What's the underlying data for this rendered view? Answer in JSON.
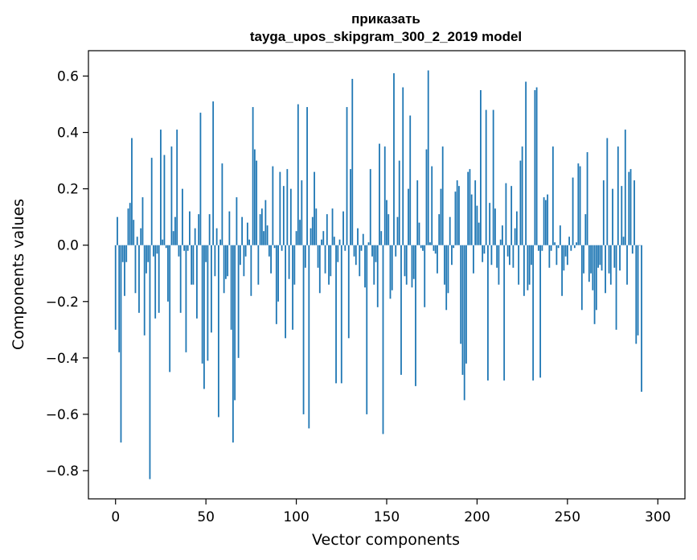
{
  "chart_data": {
    "type": "bar",
    "title_line1": "приказать",
    "title_line2": "tayga_upos_skipgram_300_2_2019 model",
    "xlabel": "Vector components",
    "ylabel": "Components values",
    "xlim": [
      -15,
      315
    ],
    "ylim": [
      -0.9,
      0.69
    ],
    "xticks": [
      0,
      50,
      100,
      150,
      200,
      250,
      300
    ],
    "xtick_labels": [
      "0",
      "50",
      "100",
      "150",
      "200",
      "250",
      "300"
    ],
    "yticks": [
      -0.8,
      -0.6,
      -0.4,
      -0.2,
      0.0,
      0.2,
      0.4,
      0.6
    ],
    "ytick_labels": [
      "−0.8",
      "−0.6",
      "−0.4",
      "−0.2",
      "0.0",
      "0.2",
      "0.4",
      "0.6"
    ],
    "bar_color": "#1f77b4",
    "grid": false,
    "legend": "none",
    "values": [
      -0.3,
      0.1,
      -0.38,
      -0.7,
      -0.06,
      -0.18,
      -0.06,
      0.13,
      0.15,
      0.38,
      0.09,
      -0.17,
      0.03,
      -0.24,
      0.06,
      0.17,
      -0.32,
      -0.1,
      -0.06,
      -0.83,
      0.31,
      -0.04,
      -0.26,
      -0.03,
      -0.24,
      0.41,
      0.02,
      0.32,
      -0.01,
      -0.2,
      -0.45,
      0.35,
      0.05,
      0.1,
      0.41,
      -0.04,
      -0.24,
      0.2,
      -0.02,
      -0.38,
      -0.02,
      0.12,
      -0.14,
      -0.14,
      0.06,
      -0.26,
      0.11,
      0.47,
      -0.42,
      -0.51,
      -0.06,
      -0.41,
      0.11,
      -0.31,
      0.51,
      -0.11,
      0.06,
      -0.61,
      0.02,
      0.29,
      -0.17,
      -0.12,
      -0.11,
      0.12,
      -0.3,
      -0.7,
      -0.55,
      0.17,
      -0.4,
      -0.07,
      0.1,
      -0.11,
      -0.04,
      0.08,
      0.02,
      -0.18,
      0.49,
      0.34,
      0.3,
      -0.14,
      0.11,
      0.13,
      0.05,
      0.16,
      0.07,
      -0.04,
      -0.1,
      0.28,
      -0.01,
      -0.28,
      -0.2,
      0.26,
      -0.02,
      0.21,
      -0.33,
      0.27,
      -0.12,
      0.2,
      -0.3,
      -0.14,
      0.05,
      0.5,
      0.09,
      0.23,
      -0.6,
      -0.08,
      0.49,
      -0.65,
      0.06,
      0.1,
      0.26,
      0.13,
      -0.08,
      -0.17,
      0.02,
      0.05,
      -0.1,
      0.11,
      -0.14,
      -0.11,
      0.13,
      0.03,
      -0.49,
      -0.06,
      0.02,
      -0.49,
      0.12,
      -0.02,
      0.49,
      -0.33,
      0.27,
      0.59,
      -0.04,
      -0.07,
      0.06,
      -0.11,
      -0.02,
      0.04,
      -0.15,
      -0.6,
      0.01,
      0.27,
      -0.04,
      -0.14,
      -0.06,
      -0.22,
      0.36,
      0.05,
      -0.67,
      0.35,
      0.16,
      0.11,
      -0.19,
      -0.16,
      0.61,
      -0.04,
      0.1,
      0.3,
      -0.46,
      0.56,
      -0.11,
      -0.14,
      0.2,
      0.46,
      -0.15,
      -0.12,
      -0.5,
      0.23,
      0.08,
      -0.01,
      -0.02,
      -0.22,
      0.34,
      0.62,
      0.01,
      0.28,
      -0.02,
      -0.03,
      -0.1,
      0.11,
      0.2,
      0.35,
      -0.14,
      -0.23,
      -0.17,
      0.1,
      -0.07,
      -0.01,
      0.19,
      0.23,
      0.21,
      -0.35,
      -0.46,
      -0.55,
      -0.42,
      0.26,
      0.27,
      0.18,
      -0.1,
      0.23,
      0.14,
      0.08,
      0.55,
      -0.06,
      -0.03,
      0.48,
      -0.48,
      0.15,
      -0.07,
      0.48,
      0.13,
      -0.08,
      -0.14,
      0.02,
      0.07,
      -0.48,
      0.22,
      -0.04,
      -0.07,
      0.21,
      -0.08,
      0.06,
      0.12,
      -0.14,
      0.3,
      0.35,
      -0.18,
      0.58,
      -0.16,
      -0.14,
      -0.07,
      -0.48,
      0.55,
      0.56,
      -0.02,
      -0.47,
      -0.02,
      0.17,
      0.16,
      0.18,
      -0.08,
      -0.02,
      0.35,
      0.01,
      -0.07,
      -0.01,
      0.07,
      -0.18,
      -0.09,
      -0.04,
      -0.07,
      0.03,
      -0.02,
      0.24,
      -0.01,
      0.01,
      0.29,
      0.28,
      -0.23,
      -0.1,
      0.11,
      0.33,
      -0.13,
      -0.1,
      -0.16,
      -0.28,
      -0.23,
      -0.08,
      -0.07,
      -0.09,
      0.23,
      -0.17,
      0.38,
      -0.1,
      -0.14,
      0.2,
      -0.08,
      -0.3,
      0.35,
      -0.09,
      0.21,
      0.03,
      0.41,
      -0.14,
      0.26,
      0.27,
      -0.03,
      0.23,
      -0.35,
      -0.32,
      0.0,
      -0.52
    ]
  }
}
